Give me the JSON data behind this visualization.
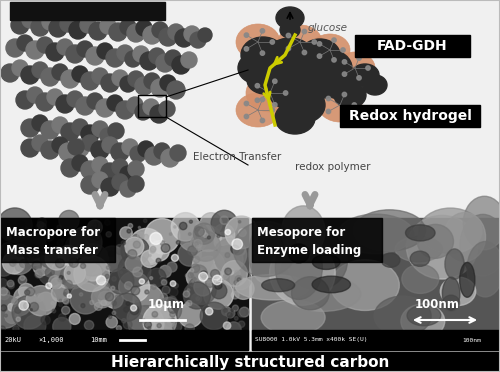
{
  "bg_color": "#f0f0f0",
  "title_box_color": "#000000",
  "title_text": "Hierarchically structured carbon",
  "title_text_color": "#ffffff",
  "label_fadgdh": "FAD-GDH",
  "label_redox": "Redox hydrogel",
  "label_glucose": "glucose",
  "label_electron": "Electron Transfer",
  "label_redox_polymer": "redox polymer",
  "label_macropore": "Macropore for\nMass transfer",
  "label_mesopore": "Mesopore for\nEnzyme loading",
  "label_scale1": "10μm",
  "label_scale2": "100nm",
  "label_sem1_left": "20kU",
  "label_sem1_mid": "×1,000",
  "label_sem1_right": "10mm",
  "label_sem2": "SU8000 1.0kV 5.3mm x400k SE(U)",
  "label_sem2_right": "100nm",
  "top_bar_color": "#111111",
  "arrow_gray": "#999999",
  "carbon_dark": "#3a3a3a",
  "carbon_mid": "#666666",
  "carbon_light": "#999999",
  "enzyme_color": "#d4906a",
  "hydrogel_dark": "#2a2a2a",
  "yellow_arrow": "#cccc00",
  "sem1_bg": "#1a1a1a",
  "sem2_bg": "#555555"
}
